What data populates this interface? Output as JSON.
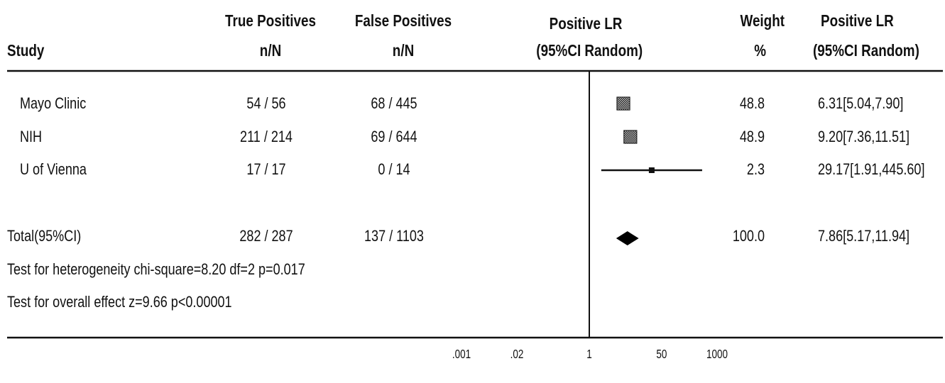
{
  "header": {
    "study": "Study",
    "tp_line1": "True Positives",
    "tp_line2": "n/N",
    "fp_line1": "False Positives",
    "fp_line2": "n/N",
    "lr_line1": "Positive LR",
    "lr_line2": "(95%CI Random)",
    "weight_line1": "Weight",
    "weight_line2": "%",
    "lr2_line1": "Positive LR",
    "lr2_line2": "(95%CI Random)"
  },
  "rows": [
    {
      "study": "Mayo Clinic",
      "tp": "54 / 56",
      "fp": "68 / 445",
      "weight": "48.8",
      "lr_text": "6.31[5.04,7.90]"
    },
    {
      "study": "NIH",
      "tp": "211 / 214",
      "fp": "69 / 644",
      "weight": "48.9",
      "lr_text": "9.20[7.36,11.51]"
    },
    {
      "study": "U of Vienna",
      "tp": "17 / 17",
      "fp": "0 / 14",
      "weight": "2.3",
      "lr_text": "29.17[1.91,445.60]"
    }
  ],
  "total": {
    "study": "Total(95%CI)",
    "tp": "282 / 287",
    "fp": "137 / 1103",
    "weight": "100.0",
    "lr_text": "7.86[5.17,11.94]"
  },
  "footer": {
    "heterogeneity": "Test for heterogeneity chi-square=8.20  df=2  p=0.017",
    "overall": "Test for overall effect  z=9.66  p<0.00001"
  },
  "chart_data": {
    "type": "forest",
    "x_scale": "log",
    "xlim": [
      0.001,
      1000
    ],
    "x_ticks": [
      {
        "value": 0.001,
        "label": ".001"
      },
      {
        "value": 0.02,
        "label": ".02"
      },
      {
        "value": 1,
        "label": "1"
      },
      {
        "value": 50,
        "label": "50"
      },
      {
        "value": 1000,
        "label": "1000"
      }
    ],
    "reference_line": 1,
    "studies": [
      {
        "name": "Mayo Clinic",
        "estimate": 6.31,
        "lower": 5.04,
        "upper": 7.9,
        "weight": 48.8
      },
      {
        "name": "NIH",
        "estimate": 9.2,
        "lower": 7.36,
        "upper": 11.51,
        "weight": 48.9
      },
      {
        "name": "U of Vienna",
        "estimate": 29.17,
        "lower": 1.91,
        "upper": 445.6,
        "weight": 2.3
      }
    ],
    "pooled": {
      "name": "Total(95%CI)",
      "estimate": 7.86,
      "lower": 5.17,
      "upper": 11.94
    }
  }
}
